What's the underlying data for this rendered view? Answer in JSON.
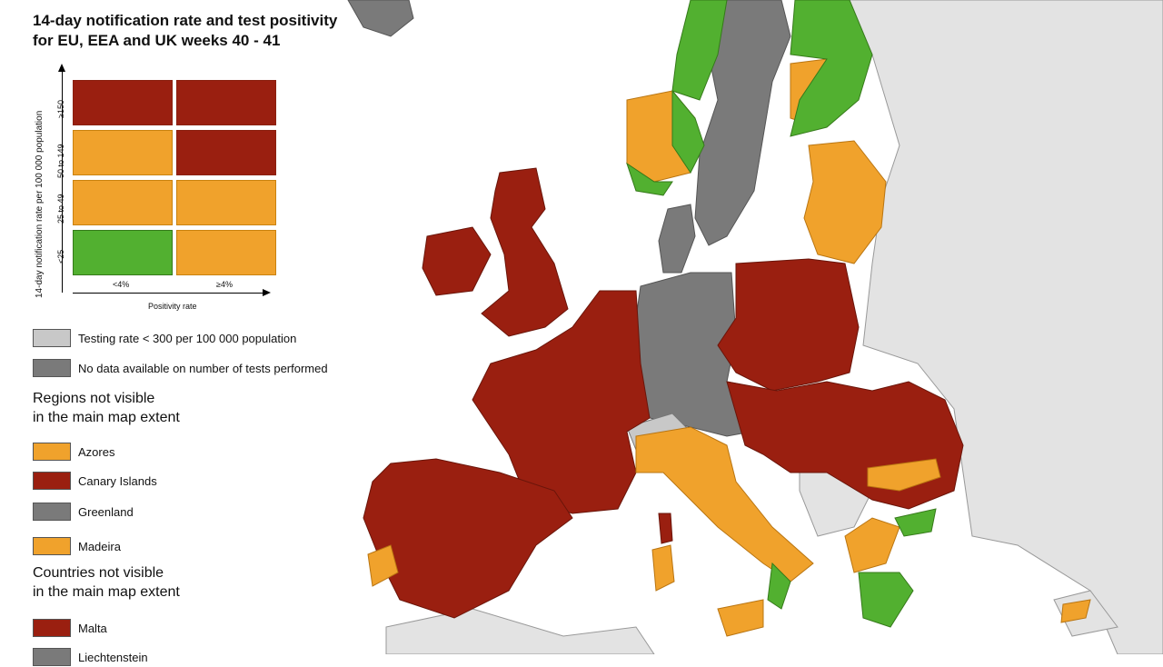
{
  "title_line1": "14-day notification rate and test positivity",
  "title_line2": "for EU, EEA and UK weeks 40 - 41",
  "colors": {
    "high": "#9a1f10",
    "medium": "#f0a22c",
    "low": "#52b030",
    "testing_low": "#c8c8c8",
    "no_data": "#7a7a7a",
    "non_eu": "#e3e3e3",
    "sea": "#ffffff"
  },
  "legend_matrix": {
    "y_axis_title": "14-day notification rate per 100 000 population",
    "x_axis_title": "Positivity rate",
    "rows": [
      "≥150",
      "50 to 149",
      "25 to 49",
      "<25"
    ],
    "cols": [
      "<4%",
      "≥4%"
    ],
    "cells": [
      [
        "high",
        "high"
      ],
      [
        "medium",
        "high"
      ],
      [
        "medium",
        "medium"
      ],
      [
        "low",
        "medium"
      ]
    ]
  },
  "legend_extra": {
    "testing": "Testing rate < 300 per 100 000 population",
    "no_data": "No data available on number of tests performed"
  },
  "regions_heading_1": "Regions not visible",
  "regions_heading_2": "in the main map extent",
  "regions": [
    {
      "name": "Azores",
      "color": "medium"
    },
    {
      "name": "Canary Islands",
      "color": "high"
    },
    {
      "name": "Greenland",
      "color": "no_data"
    },
    {
      "name": "Madeira",
      "color": "medium"
    }
  ],
  "countries_heading_1": "Countries not visible",
  "countries_heading_2": "in the main map extent",
  "countries": [
    {
      "name": "Malta",
      "color": "high"
    },
    {
      "name": "Liechtenstein",
      "color": "no_data"
    }
  ]
}
